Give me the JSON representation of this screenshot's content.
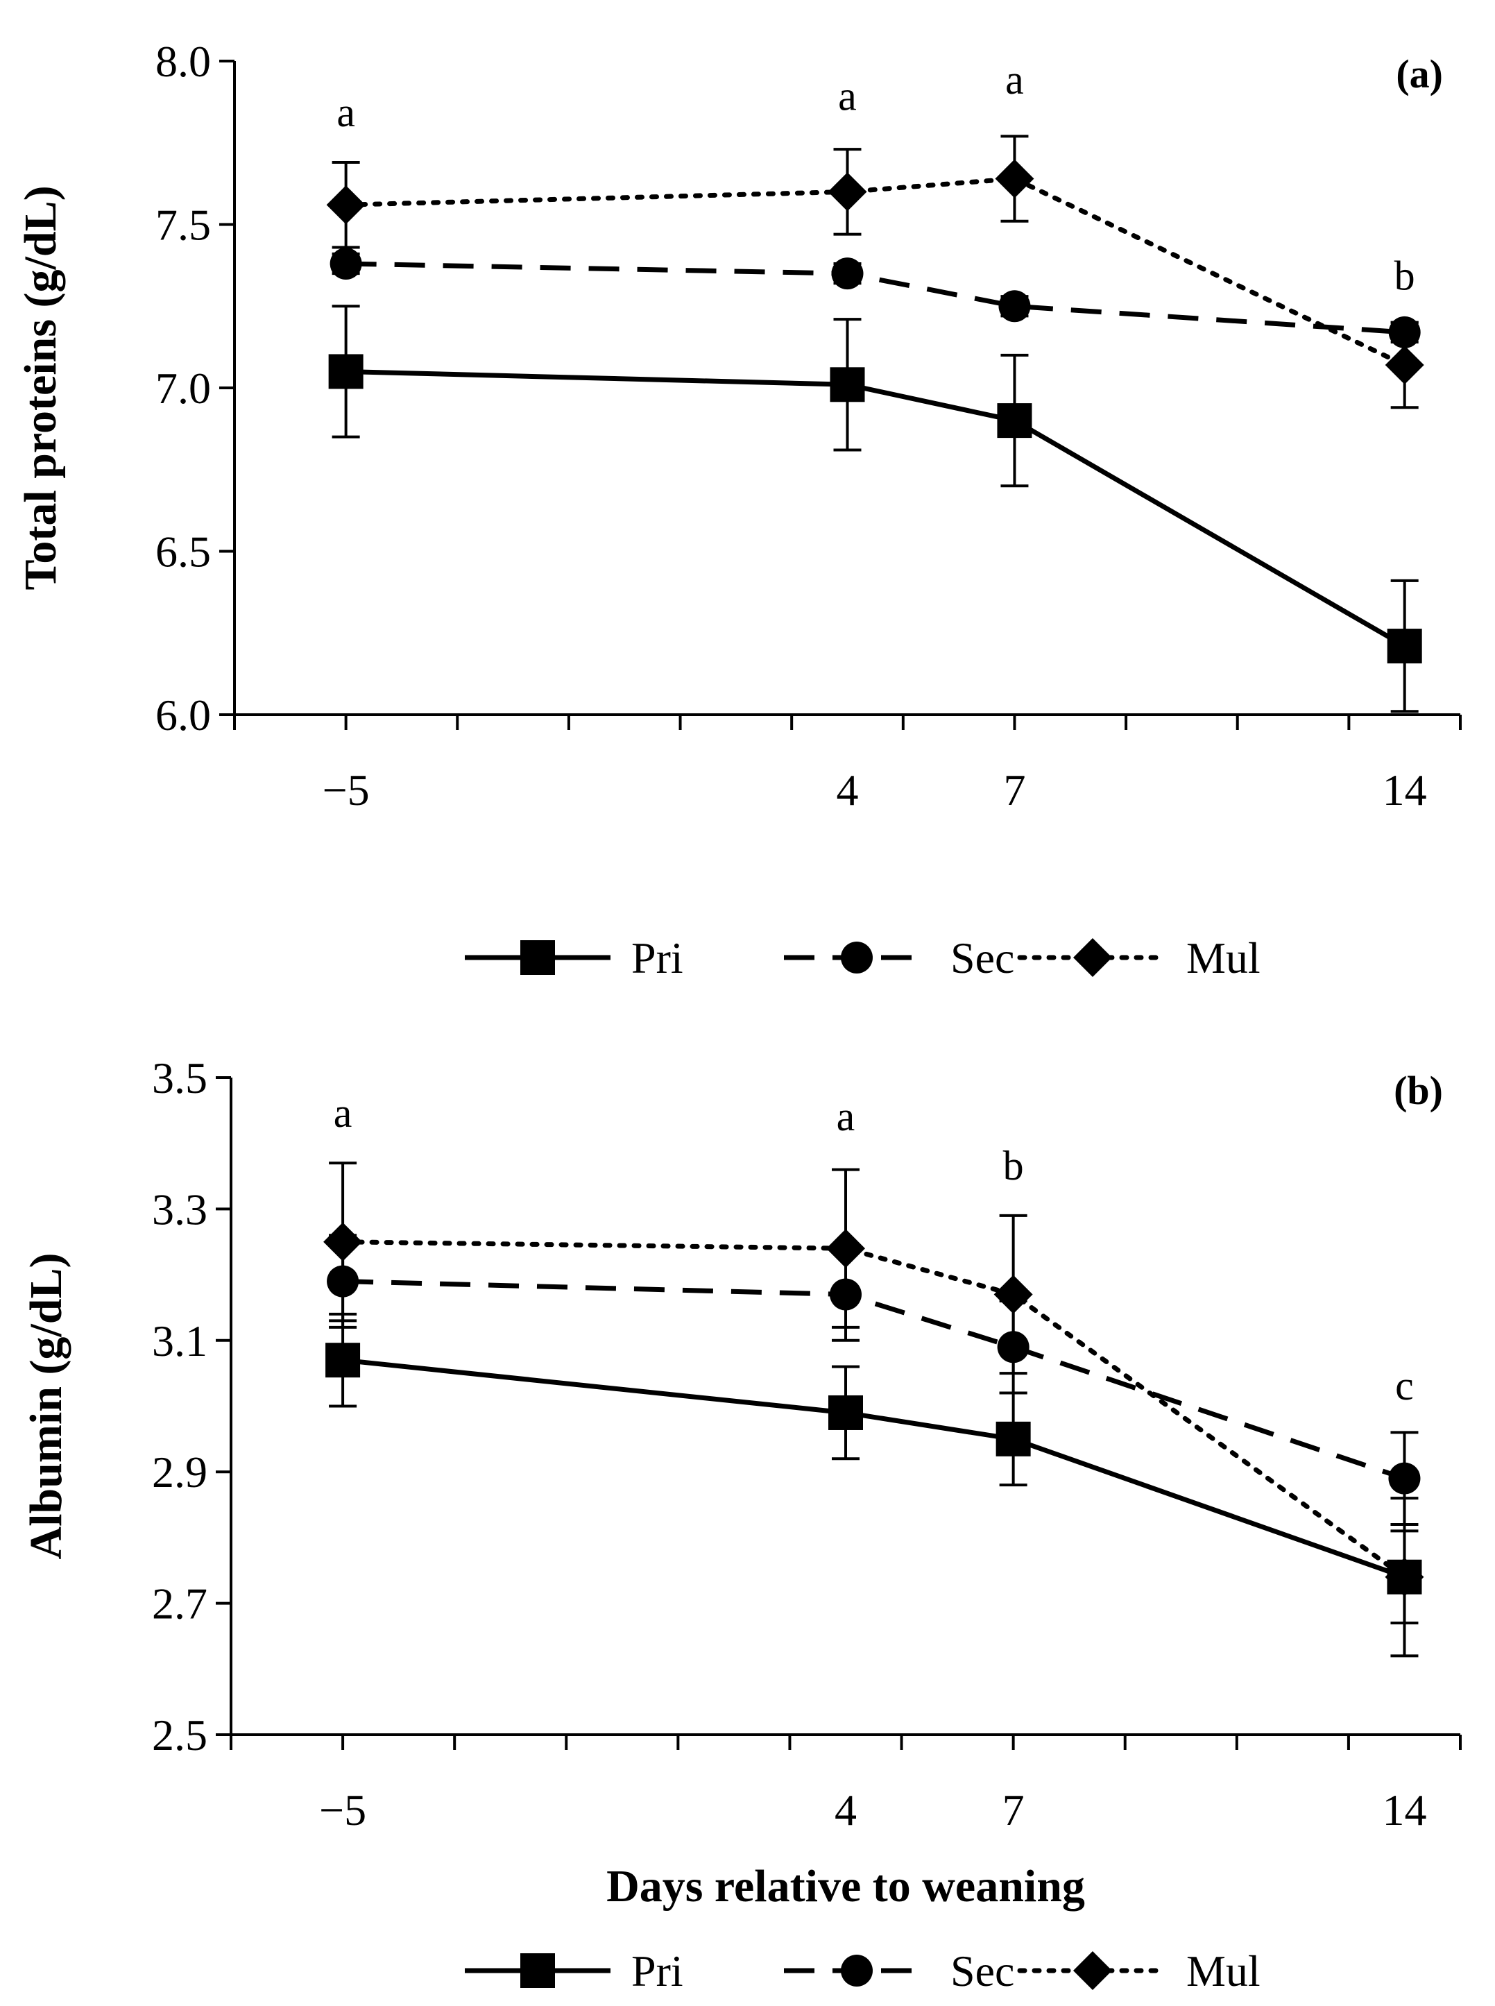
{
  "chart_data": [
    {
      "type": "line",
      "panel_label": "(a)",
      "ylabel": "Total proteins (g/dL)",
      "xlabel": "",
      "x": [
        -5,
        4,
        7,
        14
      ],
      "x_tick_labels": [
        "−5",
        "4",
        "7",
        "14"
      ],
      "xlim": [
        -7,
        15
      ],
      "ylim": [
        6.0,
        8.0
      ],
      "y_ticks": [
        6.0,
        6.5,
        7.0,
        7.5,
        8.0
      ],
      "y_tick_labels": [
        "6.0",
        "6.5",
        "7.0",
        "7.5",
        "8.0"
      ],
      "grid": false,
      "legend": "bottom",
      "letters": [
        {
          "x": -5,
          "text": "a",
          "y": 7.8
        },
        {
          "x": 4,
          "text": "a",
          "y": 7.85
        },
        {
          "x": 7,
          "text": "a",
          "y": 7.9
        },
        {
          "x": 14,
          "text": "b",
          "y": 7.3
        }
      ],
      "series": [
        {
          "name": "Pri",
          "style": "solid",
          "marker": "square",
          "values": [
            7.05,
            7.01,
            6.9,
            6.21
          ],
          "errors": [
            0.2,
            0.2,
            0.2,
            0.2
          ]
        },
        {
          "name": "Sec",
          "style": "dashed",
          "marker": "circle",
          "values": [
            7.38,
            7.35,
            7.25,
            7.17
          ],
          "errors": [
            0.03,
            0.03,
            0.03,
            0.03
          ]
        },
        {
          "name": "Mul",
          "style": "dotted",
          "marker": "diamond",
          "values": [
            7.56,
            7.6,
            7.64,
            7.07
          ],
          "errors": [
            0.13,
            0.13,
            0.13,
            0.13
          ]
        }
      ]
    },
    {
      "type": "line",
      "panel_label": "(b)",
      "ylabel": "Albumin (g/dL)",
      "xlabel": "Days relative to weaning",
      "x": [
        -5,
        4,
        7,
        14
      ],
      "x_tick_labels": [
        "−5",
        "4",
        "7",
        "14"
      ],
      "xlim": [
        -7,
        15
      ],
      "ylim": [
        2.5,
        3.5
      ],
      "y_ticks": [
        2.5,
        2.7,
        2.9,
        3.1,
        3.3,
        3.5
      ],
      "y_tick_labels": [
        "2.5",
        "2.7",
        "2.9",
        "3.1",
        "3.3",
        "3.5"
      ],
      "grid": false,
      "legend": "bottom",
      "letters": [
        {
          "x": -5,
          "text": "a",
          "y": 3.425
        },
        {
          "x": 4,
          "text": "a",
          "y": 3.42
        },
        {
          "x": 7,
          "text": "b",
          "y": 3.345
        },
        {
          "x": 14,
          "text": "c",
          "y": 3.01
        }
      ],
      "series": [
        {
          "name": "Pri",
          "style": "solid",
          "marker": "square",
          "values": [
            3.07,
            2.99,
            2.95,
            2.74
          ],
          "errors": [
            0.07,
            0.07,
            0.07,
            0.07
          ]
        },
        {
          "name": "Sec",
          "style": "dashed",
          "marker": "circle",
          "values": [
            3.19,
            3.17,
            3.09,
            2.89
          ],
          "errors": [
            0.07,
            0.07,
            0.07,
            0.07
          ]
        },
        {
          "name": "Mul",
          "style": "dotted",
          "marker": "diamond",
          "values": [
            3.25,
            3.24,
            3.17,
            2.74
          ],
          "errors": [
            0.12,
            0.12,
            0.12,
            0.12
          ]
        }
      ]
    }
  ],
  "colors": {
    "line": "#000000",
    "background": "#ffffff"
  }
}
